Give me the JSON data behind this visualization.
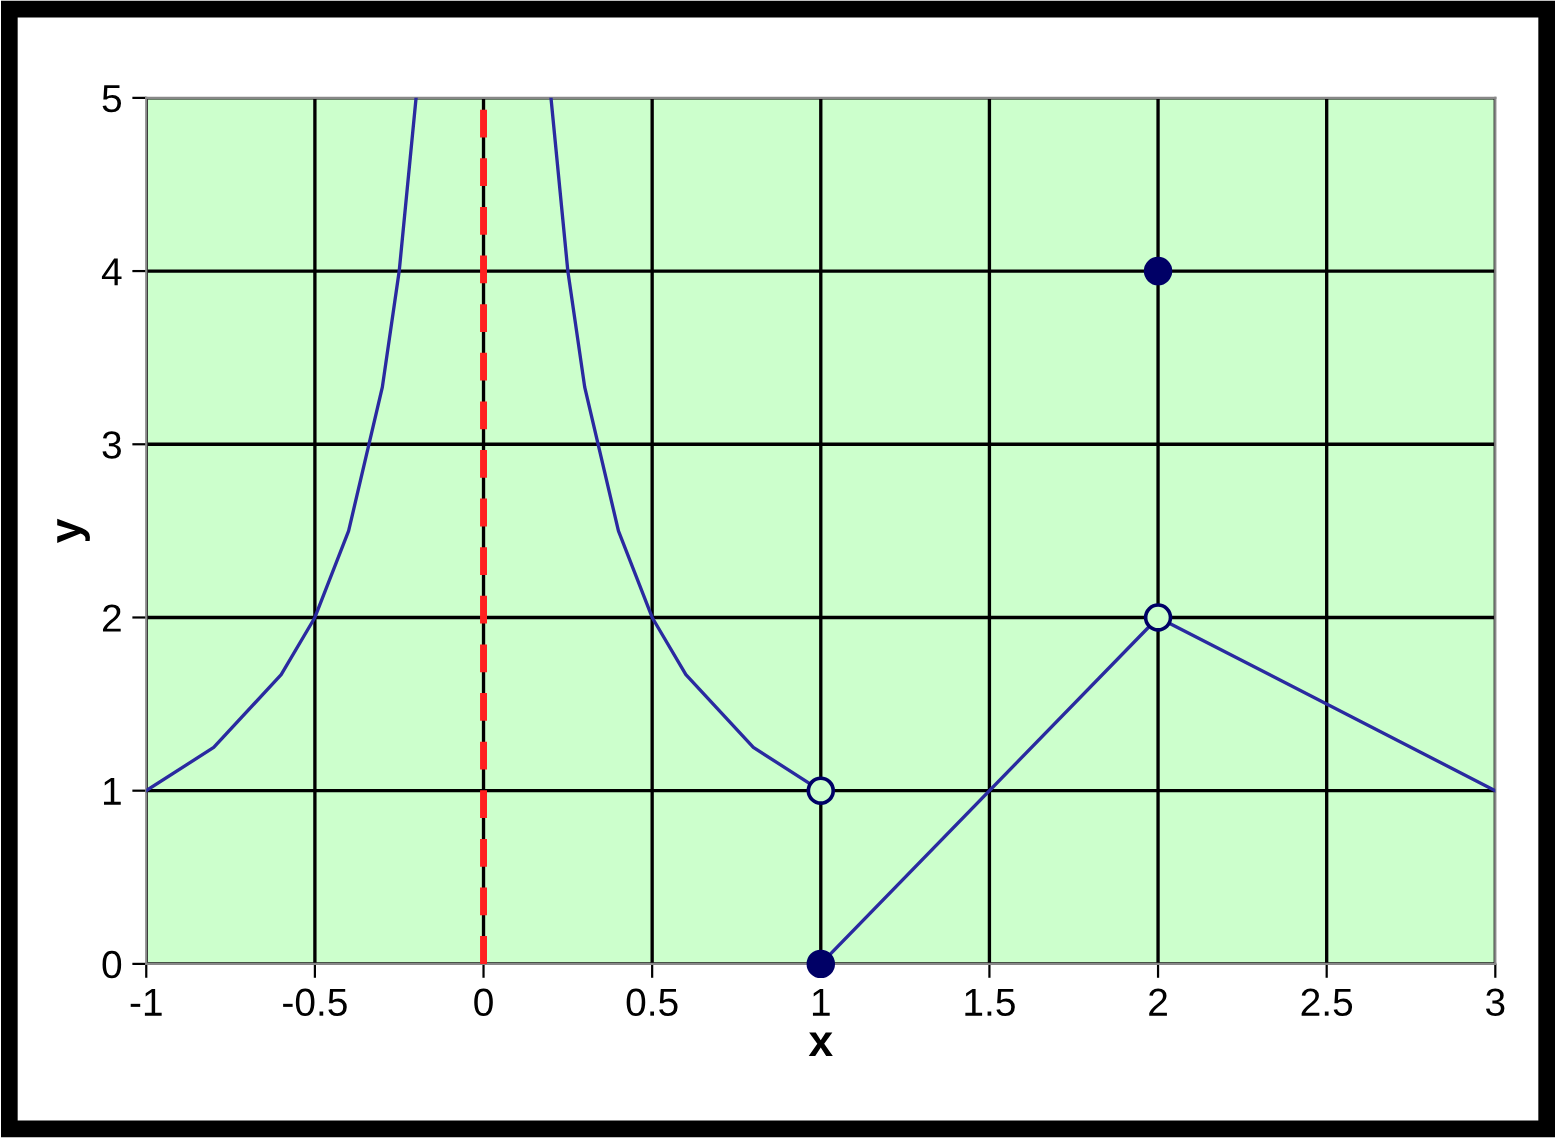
{
  "chart_data": {
    "type": "line",
    "xlabel": "x",
    "ylabel": "y",
    "xlim": [
      -1,
      3
    ],
    "ylim": [
      0,
      5
    ],
    "xticks": [
      -1,
      -0.5,
      0,
      0.5,
      1,
      1.5,
      2,
      2.5,
      3
    ],
    "yticks": [
      0,
      1,
      2,
      3,
      4,
      5
    ],
    "grid": true,
    "line_style": "solid",
    "series": [
      {
        "color": "#2a2aa0",
        "x": [
          -1,
          -0.8,
          -0.6,
          -0.5,
          -0.4,
          -0.3,
          -0.25,
          -0.2
        ],
        "values": [
          1,
          1.25,
          1.67,
          2,
          2.5,
          3.33,
          4,
          5
        ]
      },
      {
        "color": "#2a2aa0",
        "x": [
          0.2,
          0.25,
          0.3,
          0.4,
          0.5,
          0.6,
          0.8,
          1
        ],
        "values": [
          5,
          4,
          3.33,
          2.5,
          2,
          1.67,
          1.25,
          1
        ]
      },
      {
        "color": "#2a2aa0",
        "x": [
          1,
          2,
          3
        ],
        "values": [
          0,
          2,
          1
        ]
      },
      {
        "type": "scatter",
        "color": "#000066",
        "marker": "circle",
        "x": [
          1,
          2
        ],
        "values": [
          0,
          4
        ]
      },
      {
        "type": "scatter",
        "color": "#000066",
        "marker": "circle",
        "colors": [
          "#ccffcc",
          "#ccffcc"
        ],
        "x": [
          1,
          2
        ],
        "values": [
          1,
          2
        ]
      }
    ],
    "ref_lines": [
      {
        "axis": "x",
        "value": 0,
        "color": "#ff2020",
        "line_style": "dashed"
      }
    ]
  }
}
